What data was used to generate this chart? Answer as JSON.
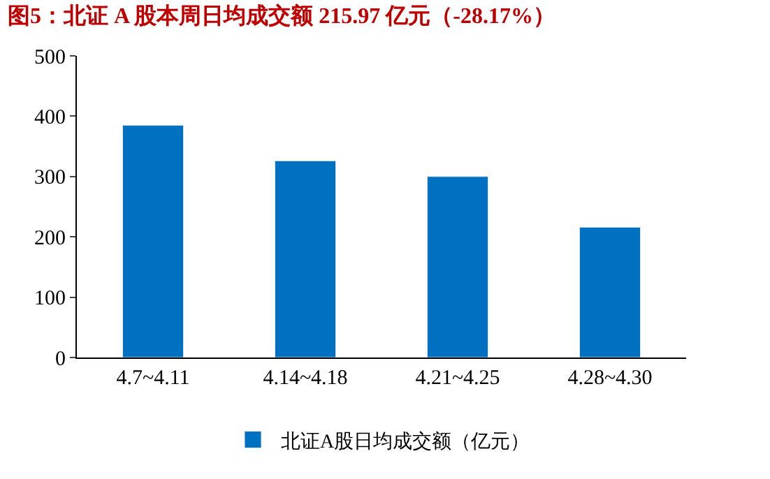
{
  "chart_data": {
    "type": "bar",
    "title": "图5：北证 A 股本周日均成交额 215.97 亿元（-28.17%）",
    "categories": [
      "4.7~4.11",
      "4.14~4.18",
      "4.21~4.25",
      "4.28~4.30"
    ],
    "series": [
      {
        "name": "北证A股日均成交额（亿元）",
        "color": "#0070c0",
        "values": [
          385,
          326,
          300,
          216
        ]
      }
    ],
    "ylim": [
      0,
      500
    ],
    "yticks": [
      0,
      100,
      200,
      300,
      400,
      500
    ],
    "legend": "bottom"
  }
}
